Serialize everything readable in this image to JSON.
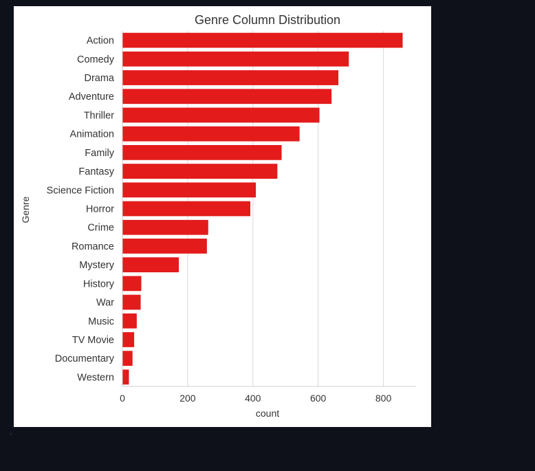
{
  "chart_data": {
    "type": "bar",
    "orientation": "horizontal",
    "title": "Genre Column Distribution",
    "xlabel": "count",
    "ylabel": "Genre",
    "categories": [
      "Action",
      "Comedy",
      "Drama",
      "Adventure",
      "Thriller",
      "Animation",
      "Family",
      "Fantasy",
      "Science Fiction",
      "Horror",
      "Crime",
      "Romance",
      "Mystery",
      "History",
      "War",
      "Music",
      "TV Movie",
      "Documentary",
      "Western"
    ],
    "values": [
      859,
      694,
      662,
      641,
      604,
      543,
      488,
      475,
      409,
      392,
      263,
      259,
      173,
      58,
      56,
      44,
      36,
      31,
      20
    ],
    "xlim": [
      0,
      900
    ],
    "xticks": [
      0,
      200,
      400,
      600,
      800
    ],
    "grid": "vertical",
    "bar_color": "#e31b1b",
    "grid_color": "#d9d9d9",
    "axis_color": "#cccccc"
  },
  "colors": {
    "page_background": "#0e111a",
    "figure_background": "#ffffff",
    "text": "#333333"
  },
  "nav": {
    "scroll_left_icon": "chevron-left-icon"
  }
}
